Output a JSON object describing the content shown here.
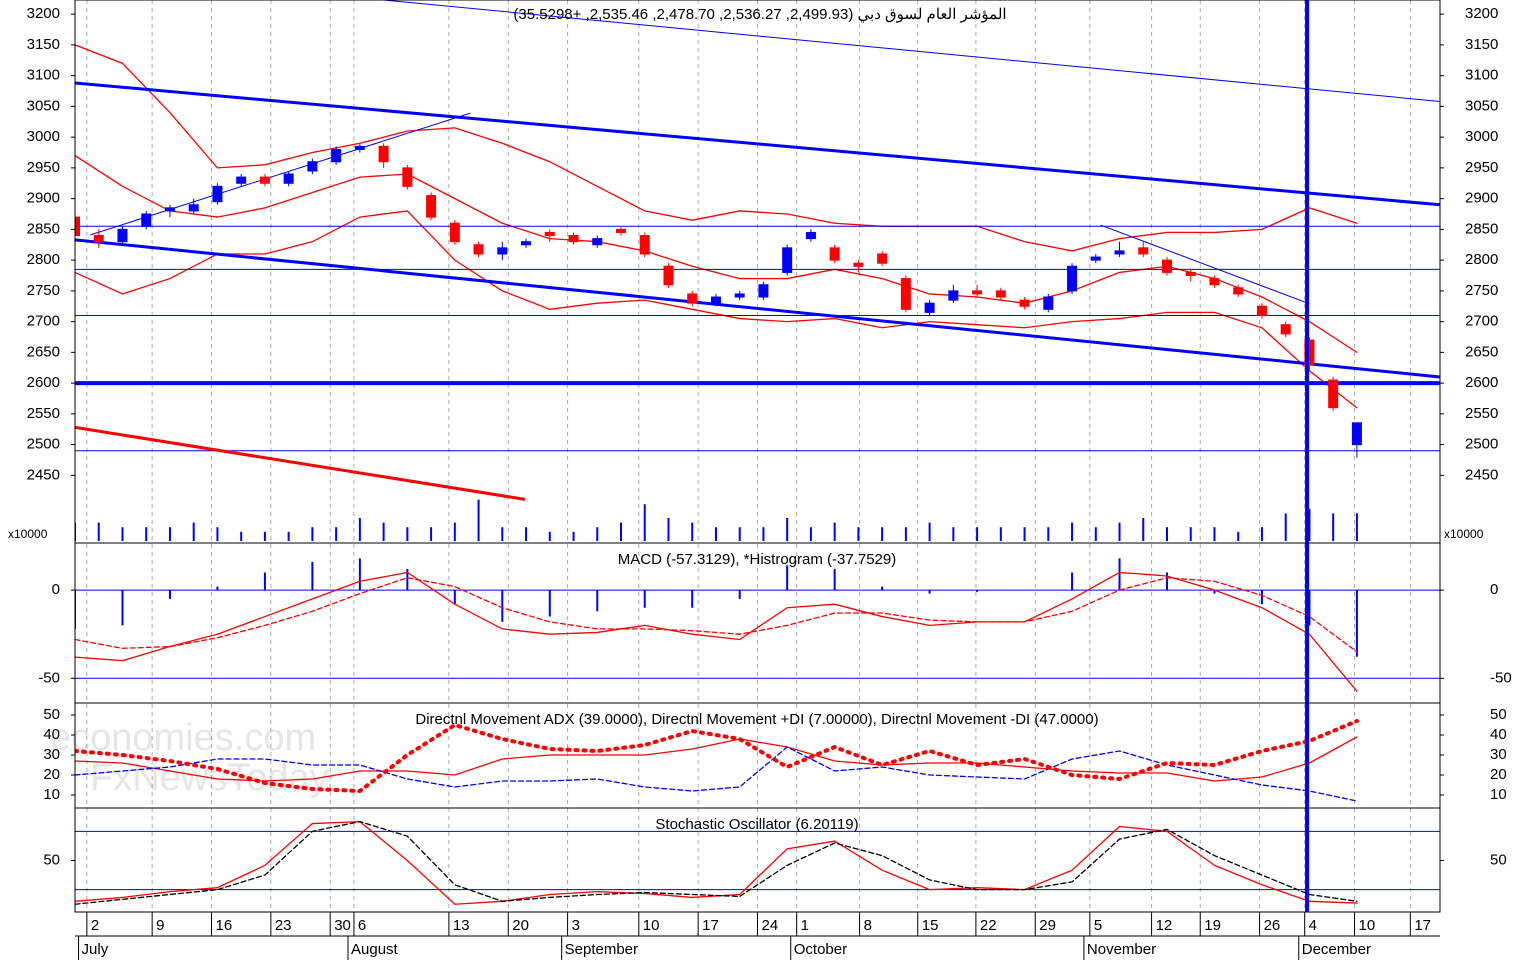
{
  "chart_data": {
    "type": "candlestick",
    "title": "المؤشر العام لسوق دبي (2,499.93, 2,536.27, 2,478.70, 2,535.46, +35.5298)",
    "watermark": [
      "economies.com",
      "FxNewsToday"
    ],
    "up_color": "#0000ff",
    "down_color": "#ff0000",
    "xlim": [
      0,
      115
    ],
    "xticks": [
      {
        "value": 1,
        "label": "2"
      },
      {
        "value": 6.5,
        "label": "9"
      },
      {
        "value": 11.5,
        "label": "16"
      },
      {
        "value": 16.5,
        "label": "23"
      },
      {
        "value": 21.5,
        "label": "30"
      },
      {
        "value": 23.5,
        "label": "6"
      },
      {
        "value": 31.5,
        "label": "13"
      },
      {
        "value": 36.5,
        "label": "20"
      },
      {
        "value": 41.5,
        "label": "3"
      },
      {
        "value": 47.5,
        "label": "10"
      },
      {
        "value": 52.5,
        "label": "17"
      },
      {
        "value": 57.5,
        "label": "24"
      },
      {
        "value": 60.8,
        "label": "1"
      },
      {
        "value": 66.1,
        "label": "8"
      },
      {
        "value": 71,
        "label": "15"
      },
      {
        "value": 75.9,
        "label": "22"
      },
      {
        "value": 80.9,
        "label": "29"
      },
      {
        "value": 85.5,
        "label": "5"
      },
      {
        "value": 90.7,
        "label": "12"
      },
      {
        "value": 94.8,
        "label": "19"
      },
      {
        "value": 99.8,
        "label": "26"
      },
      {
        "value": 103.6,
        "label": "4"
      },
      {
        "value": 107.8,
        "label": "10"
      },
      {
        "value": 112.5,
        "label": "17"
      }
    ],
    "month_ticks": [
      {
        "value": 0.3,
        "label": "July"
      },
      {
        "value": 23,
        "label": "August"
      },
      {
        "value": 41,
        "label": "September"
      },
      {
        "value": 60.3,
        "label": "October"
      },
      {
        "value": 85,
        "label": "November"
      },
      {
        "value": 103.1,
        "label": "December"
      }
    ],
    "ylim": [
      2340,
      3223
    ],
    "yticks": [
      3200,
      3150,
      3100,
      3050,
      3000,
      2950,
      2900,
      2850,
      2800,
      2750,
      2700,
      2650,
      2600,
      2550,
      2500,
      2450
    ],
    "x": [
      0,
      2,
      4,
      6,
      8,
      10,
      12,
      14,
      16,
      18,
      20,
      22,
      24,
      26,
      28,
      30,
      32,
      34,
      36,
      38,
      40,
      42,
      44,
      46,
      48,
      50,
      52,
      54,
      56,
      58,
      60,
      62,
      64,
      66,
      68,
      70,
      72,
      74,
      76,
      78,
      80,
      82,
      84,
      86,
      88,
      90,
      92,
      94,
      96,
      98,
      100,
      102,
      104,
      106,
      108
    ],
    "candles": [
      [
        2870,
        2880,
        2830,
        2840
      ],
      [
        2840,
        2850,
        2820,
        2830
      ],
      [
        2830,
        2855,
        2825,
        2850
      ],
      [
        2855,
        2880,
        2850,
        2875
      ],
      [
        2880,
        2890,
        2870,
        2885
      ],
      [
        2880,
        2900,
        2875,
        2890
      ],
      [
        2895,
        2925,
        2890,
        2920
      ],
      [
        2925,
        2940,
        2920,
        2935
      ],
      [
        2935,
        2940,
        2920,
        2925
      ],
      [
        2925,
        2945,
        2920,
        2940
      ],
      [
        2945,
        2965,
        2940,
        2960
      ],
      [
        2960,
        2985,
        2955,
        2980
      ],
      [
        2980,
        2990,
        2975,
        2985
      ],
      [
        2985,
        2990,
        2950,
        2960
      ],
      [
        2950,
        2955,
        2915,
        2920
      ],
      [
        2905,
        2910,
        2865,
        2870
      ],
      [
        2860,
        2865,
        2825,
        2830
      ],
      [
        2825,
        2830,
        2805,
        2810
      ],
      [
        2810,
        2830,
        2800,
        2820
      ],
      [
        2825,
        2835,
        2820,
        2830
      ],
      [
        2845,
        2850,
        2830,
        2840
      ],
      [
        2840,
        2845,
        2825,
        2830
      ],
      [
        2825,
        2840,
        2820,
        2835
      ],
      [
        2850,
        2855,
        2840,
        2845
      ],
      [
        2840,
        2845,
        2805,
        2810
      ],
      [
        2790,
        2795,
        2755,
        2760
      ],
      [
        2745,
        2750,
        2725,
        2730
      ],
      [
        2730,
        2745,
        2725,
        2740
      ],
      [
        2740,
        2750,
        2735,
        2745
      ],
      [
        2740,
        2765,
        2735,
        2760
      ],
      [
        2780,
        2825,
        2775,
        2820
      ],
      [
        2835,
        2850,
        2830,
        2845
      ],
      [
        2820,
        2825,
        2795,
        2800
      ],
      [
        2795,
        2800,
        2780,
        2790
      ],
      [
        2810,
        2815,
        2790,
        2795
      ],
      [
        2770,
        2775,
        2715,
        2720
      ],
      [
        2715,
        2735,
        2710,
        2730
      ],
      [
        2735,
        2760,
        2730,
        2750
      ],
      [
        2750,
        2760,
        2740,
        2745
      ],
      [
        2750,
        2755,
        2735,
        2740
      ],
      [
        2735,
        2740,
        2720,
        2725
      ],
      [
        2720,
        2745,
        2715,
        2740
      ],
      [
        2750,
        2795,
        2745,
        2790
      ],
      [
        2800,
        2810,
        2795,
        2805
      ],
      [
        2810,
        2830,
        2805,
        2815
      ],
      [
        2820,
        2830,
        2805,
        2810
      ],
      [
        2800,
        2805,
        2775,
        2780
      ],
      [
        2780,
        2785,
        2765,
        2775
      ],
      [
        2770,
        2775,
        2755,
        2760
      ],
      [
        2755,
        2760,
        2740,
        2745
      ],
      [
        2725,
        2730,
        2705,
        2710
      ],
      [
        2695,
        2700,
        2675,
        2680
      ],
      [
        2670,
        2675,
        2620,
        2630
      ],
      [
        2605,
        2610,
        2555,
        2560
      ],
      [
        2499.93,
        2536.27,
        2478.7,
        2535.46
      ]
    ],
    "volume": {
      "unit_label": "x10000",
      "ylim": [
        0,
        10
      ],
      "color": "#0000ff",
      "values": [
        4,
        4,
        3,
        3,
        3,
        4,
        3,
        2,
        2,
        2,
        3,
        3,
        5,
        4,
        3,
        3,
        4,
        9,
        3,
        3,
        2,
        2,
        3,
        4,
        8,
        5,
        4,
        3,
        3,
        3,
        5,
        3,
        4,
        3,
        3,
        3,
        4,
        3,
        3,
        3,
        3,
        3,
        4,
        3,
        4,
        5,
        3,
        3,
        3,
        2,
        3,
        6,
        7,
        6,
        6
      ]
    },
    "bands": {
      "color": "#ff0000",
      "x": [
        0,
        4,
        8,
        12,
        16,
        20,
        24,
        28,
        32,
        36,
        40,
        44,
        48,
        52,
        56,
        60,
        64,
        68,
        72,
        76,
        80,
        84,
        88,
        92,
        96,
        100,
        104,
        108
      ],
      "upper": [
        3150,
        3120,
        3040,
        2950,
        2955,
        2975,
        2990,
        3010,
        3015,
        2990,
        2960,
        2920,
        2880,
        2865,
        2880,
        2875,
        2860,
        2855,
        2855,
        2855,
        2830,
        2815,
        2835,
        2845,
        2845,
        2850,
        2885,
        2860
      ],
      "middle": [
        2970,
        2920,
        2880,
        2870,
        2885,
        2910,
        2935,
        2940,
        2900,
        2860,
        2835,
        2830,
        2815,
        2790,
        2770,
        2770,
        2785,
        2770,
        2745,
        2740,
        2730,
        2750,
        2780,
        2790,
        2770,
        2740,
        2700,
        2650
      ],
      "lower": [
        2780,
        2745,
        2770,
        2810,
        2810,
        2830,
        2870,
        2880,
        2800,
        2750,
        2720,
        2730,
        2735,
        2720,
        2705,
        2700,
        2705,
        2690,
        2700,
        2695,
        2690,
        2700,
        2705,
        2715,
        2715,
        2690,
        2620,
        2560
      ]
    },
    "hlines": [
      {
        "value": 2855,
        "width": 1
      },
      {
        "value": 2785,
        "width": 1
      },
      {
        "value": 2710,
        "width": 1
      },
      {
        "value": 2600,
        "width": 4
      },
      {
        "value": 2490,
        "width": 1
      }
    ],
    "hline_color": "#0000ff",
    "vlines": [
      {
        "value": 103.8,
        "width": 4,
        "color": "#0000ff"
      }
    ],
    "trendlines": [
      {
        "x": [
          26,
          115
        ],
        "y": [
          3223,
          3058
        ],
        "width": 1,
        "color": "#0000ff"
      },
      {
        "x": [
          0,
          115
        ],
        "y": [
          3088,
          2890
        ],
        "width": 3,
        "color": "#0000ff"
      },
      {
        "x": [
          0,
          115
        ],
        "y": [
          2833,
          2610
        ],
        "width": 3,
        "color": "#0000ff"
      },
      {
        "x": [
          1.3,
          33.3
        ],
        "y": [
          2841,
          3039
        ],
        "width": 1,
        "color": "#0000ff"
      },
      {
        "x": [
          86.4,
          104
        ],
        "y": [
          2857,
          2729
        ],
        "width": 1,
        "color": "#0000ff"
      },
      {
        "x": [
          0,
          37.9
        ],
        "y": [
          2528,
          2411
        ],
        "width": 3,
        "color": "#ff0000"
      }
    ],
    "panels": [
      {
        "type": "line",
        "title": "MACD (-57.3129), *Histrogram (-37.7529)",
        "ylim": [
          -64,
          26.7
        ],
        "yticks": [
          0,
          -50
        ],
        "zero_line": true,
        "x": [
          0,
          4,
          8,
          12,
          16,
          20,
          24,
          28,
          32,
          36,
          40,
          44,
          48,
          52,
          56,
          60,
          64,
          68,
          72,
          76,
          80,
          84,
          88,
          92,
          96,
          100,
          104,
          108
        ],
        "histogram": {
          "color": "#0000ff",
          "values": [
            -22,
            -20,
            -5,
            2,
            10,
            16,
            18,
            12,
            -8,
            -18,
            -15,
            -12,
            -10,
            -10,
            -5,
            14,
            12,
            2,
            -2,
            -1,
            0,
            10,
            18,
            10,
            -2,
            -8,
            -20,
            -37.7529
          ]
        },
        "series": [
          {
            "color": "#ff0000",
            "style": "solid",
            "values": [
              -38,
              -40,
              -32,
              -25,
              -15,
              -5,
              5,
              10,
              -8,
              -22,
              -25,
              -24,
              -20,
              -25,
              -28,
              -10,
              -8,
              -15,
              -20,
              -18,
              -18,
              -5,
              10,
              8,
              0,
              -10,
              -25,
              -57.3129
            ]
          },
          {
            "color": "#ff0000",
            "style": "dashed",
            "values": [
              -28,
              -33,
              -32,
              -27,
              -20,
              -12,
              -2,
              7,
              2,
              -10,
              -18,
              -22,
              -22,
              -23,
              -25,
              -20,
              -13,
              -13,
              -17,
              -18,
              -18,
              -12,
              0,
              7,
              5,
              -3,
              -15,
              -35
            ]
          }
        ]
      },
      {
        "type": "line",
        "title": "Directnl Movement ADX (39.0000), Directnl Movement +DI (7.00000), Directnl Movement -DI (47.0000)",
        "ylim": [
          3.5,
          56
        ],
        "yticks": [
          50,
          40,
          30,
          20,
          10
        ],
        "x": [
          0,
          4,
          8,
          12,
          16,
          20,
          24,
          28,
          32,
          36,
          40,
          44,
          48,
          52,
          56,
          60,
          64,
          68,
          72,
          76,
          80,
          84,
          88,
          92,
          96,
          100,
          104,
          108
        ],
        "series": [
          {
            "color": "#ff0000",
            "style": "solid",
            "values": [
              27,
              26,
              22,
              18,
              17,
              18,
              22,
              22,
              20,
              28,
              30,
              30,
              30,
              33,
              38,
              34,
              27,
              25,
              26,
              26,
              24,
              22,
              21,
              21,
              17,
              19,
              26,
              39
            ]
          },
          {
            "color": "#0000ff",
            "style": "dashed",
            "values": [
              20,
              22,
              24,
              28,
              28,
              25,
              25,
              18,
              14,
              17,
              17,
              18,
              14,
              12,
              14,
              34,
              22,
              24,
              20,
              19,
              18,
              28,
              32,
              25,
              20,
              15,
              12,
              7
            ]
          },
          {
            "color": "#ff0000",
            "style": "dotted",
            "values": [
              32,
              30,
              27,
              23,
              16,
              13,
              12,
              30,
              45,
              38,
              33,
              32,
              35,
              42,
              38,
              24,
              34,
              25,
              32,
              25,
              28,
              20,
              18,
              26,
              25,
              32,
              37,
              47
            ]
          }
        ]
      },
      {
        "type": "line",
        "title": "Stochastic Oscillator (6.20119)",
        "ylim": [
          -3,
          104
        ],
        "yticks": [
          50
        ],
        "levels": [
          80,
          20
        ],
        "x": [
          0,
          4,
          8,
          12,
          16,
          20,
          24,
          28,
          32,
          36,
          40,
          44,
          48,
          52,
          56,
          60,
          64,
          68,
          72,
          76,
          80,
          84,
          88,
          92,
          96,
          100,
          104,
          108
        ],
        "series": [
          {
            "color": "#ff0000",
            "style": "solid",
            "values": [
              8,
              12,
              18,
              22,
              45,
              88,
              90,
              50,
              5,
              8,
              15,
              18,
              16,
              12,
              15,
              62,
              70,
              40,
              20,
              22,
              20,
              40,
              85,
              80,
              45,
              25,
              8,
              6.20119
            ]
          },
          {
            "color": "#000000",
            "style": "dashed",
            "values": [
              5,
              10,
              15,
              20,
              35,
              80,
              90,
              75,
              25,
              8,
              12,
              15,
              17,
              15,
              13,
              45,
              68,
              55,
              30,
              20,
              20,
              28,
              72,
              82,
              55,
              35,
              15,
              8
            ]
          }
        ]
      }
    ]
  }
}
